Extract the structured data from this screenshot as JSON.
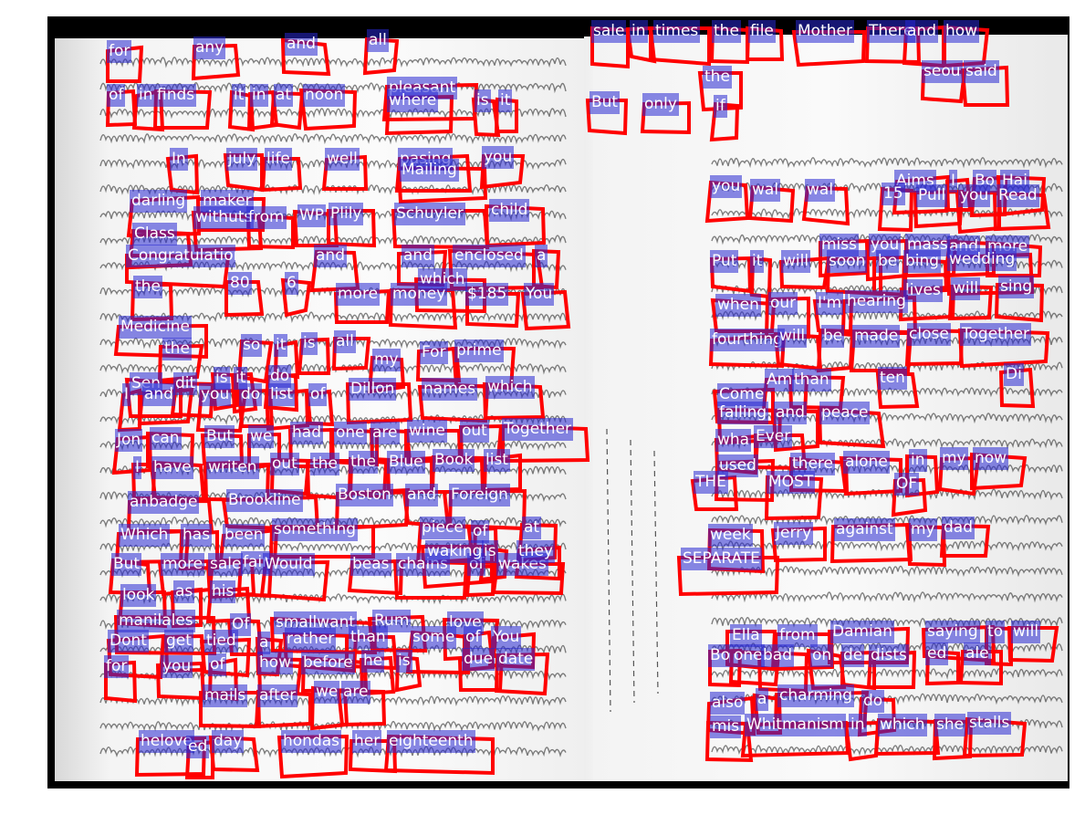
{
  "tags": [
    [
      "for",
      117,
      44,
      36
    ],
    [
      "any",
      212,
      40,
      46
    ],
    [
      "and",
      312,
      36,
      46
    ],
    [
      "all",
      402,
      32,
      30
    ],
    [
      "sale",
      648,
      22,
      42
    ],
    [
      "in",
      690,
      22,
      24
    ],
    [
      "times",
      716,
      22,
      62
    ],
    [
      "the",
      780,
      22,
      40
    ],
    [
      "file",
      820,
      22,
      38
    ],
    [
      "Mother",
      872,
      22,
      74
    ],
    [
      "There",
      950,
      22,
      58
    ],
    [
      "and",
      992,
      22,
      40
    ],
    [
      "how",
      1034,
      22,
      46
    ],
    [
      "the",
      770,
      72,
      40
    ],
    [
      "seou",
      1010,
      66,
      46
    ],
    [
      "said",
      1056,
      66,
      46
    ],
    [
      "of",
      117,
      92,
      30
    ],
    [
      "in",
      150,
      92,
      26
    ],
    [
      "finds",
      170,
      92,
      58
    ],
    [
      "it",
      254,
      92,
      22
    ],
    [
      "in",
      274,
      92,
      26
    ],
    [
      "at",
      300,
      92,
      28
    ],
    [
      "noon",
      332,
      92,
      56
    ],
    [
      "pleasant",
      424,
      84,
      98
    ],
    [
      "where",
      424,
      98,
      68
    ],
    [
      "is",
      520,
      98,
      24
    ],
    [
      "it",
      546,
      98,
      22
    ],
    [
      "But",
      646,
      100,
      40
    ],
    [
      "only",
      704,
      102,
      52
    ],
    [
      "if",
      782,
      104,
      24
    ],
    [
      "In",
      186,
      162,
      30
    ],
    [
      "july",
      248,
      162,
      42
    ],
    [
      "life",
      290,
      162,
      38
    ],
    [
      "well",
      356,
      162,
      46
    ],
    [
      "pasing",
      436,
      162,
      78
    ],
    [
      "Mailing",
      438,
      174,
      94
    ],
    [
      "you",
      528,
      160,
      42
    ],
    [
      "you",
      778,
      192,
      40
    ],
    [
      "wal",
      822,
      196,
      46
    ],
    [
      "wal",
      882,
      196,
      46
    ],
    [
      "Aims",
      980,
      186,
      60
    ],
    [
      "I",
      1040,
      186,
      22
    ],
    [
      "Bo",
      1066,
      186,
      34
    ],
    [
      "Hai",
      1096,
      186,
      46
    ],
    [
      "15",
      966,
      200,
      34
    ],
    [
      "Pull",
      1004,
      202,
      50
    ],
    [
      "you",
      1050,
      202,
      44
    ],
    [
      "Read",
      1092,
      202,
      54
    ],
    [
      "darling",
      142,
      208,
      78
    ],
    [
      "maker",
      220,
      208,
      68
    ],
    [
      "withuts",
      212,
      226,
      74
    ],
    [
      "from",
      270,
      226,
      54
    ],
    [
      "WP",
      326,
      224,
      42
    ],
    [
      "Plily",
      360,
      222,
      50
    ],
    [
      "Schuyler",
      432,
      222,
      100
    ],
    [
      "child",
      536,
      218,
      58
    ],
    [
      "Class",
      145,
      244,
      62
    ],
    [
      "Congratulations",
      138,
      268,
      110
    ],
    [
      "and",
      344,
      268,
      46
    ],
    [
      "and",
      440,
      268,
      46
    ],
    [
      "enclosed",
      496,
      268,
      96
    ],
    [
      "a",
      586,
      268,
      24
    ],
    [
      "which",
      458,
      294,
      72
    ],
    [
      "miss",
      898,
      256,
      52
    ],
    [
      "you",
      952,
      256,
      42
    ],
    [
      "mass",
      992,
      256,
      54
    ],
    [
      "and",
      1038,
      258,
      48
    ],
    [
      "more",
      1080,
      258,
      60
    ],
    [
      "Put",
      778,
      274,
      44
    ],
    [
      "it",
      822,
      274,
      24
    ],
    [
      "will",
      856,
      274,
      50
    ],
    [
      "soon",
      906,
      274,
      58
    ],
    [
      "be",
      960,
      274,
      34
    ],
    [
      "bing",
      990,
      274,
      48
    ],
    [
      "wedding",
      1038,
      272,
      92
    ],
    [
      "the",
      146,
      302,
      40
    ],
    [
      "80",
      250,
      298,
      34
    ],
    [
      "6",
      312,
      298,
      24
    ],
    [
      "more",
      368,
      310,
      58
    ],
    [
      "money",
      428,
      310,
      70
    ],
    [
      "$185",
      510,
      310,
      58
    ],
    [
      "You",
      574,
      310,
      46
    ],
    [
      "lives",
      990,
      306,
      56
    ],
    [
      "will",
      1042,
      304,
      44
    ],
    [
      "sing",
      1094,
      302,
      50
    ],
    [
      "when",
      784,
      322,
      64
    ],
    [
      "our",
      842,
      320,
      42
    ],
    [
      "I'm",
      894,
      320,
      40
    ],
    [
      "hearing",
      926,
      318,
      76
    ],
    [
      "Medicine",
      130,
      346,
      98
    ],
    [
      "the",
      178,
      370,
      40
    ],
    [
      "so",
      264,
      366,
      30
    ],
    [
      "it",
      300,
      366,
      24
    ],
    [
      "is",
      330,
      364,
      28
    ],
    [
      "all",
      366,
      362,
      36
    ],
    [
      "my",
      408,
      382,
      34
    ],
    [
      "For",
      460,
      374,
      42
    ],
    [
      "prime",
      498,
      372,
      64
    ],
    [
      "fourthing",
      778,
      360,
      82
    ],
    [
      "will",
      852,
      356,
      46
    ],
    [
      "be",
      900,
      356,
      34
    ],
    [
      "made",
      934,
      356,
      64
    ],
    [
      "close",
      994,
      354,
      60
    ],
    [
      "Together",
      1052,
      354,
      94
    ],
    [
      "Sen",
      142,
      408,
      56
    ],
    [
      "dit",
      190,
      408,
      40
    ],
    [
      "is",
      234,
      402,
      26
    ],
    [
      "it",
      256,
      402,
      22
    ],
    [
      "do",
      294,
      400,
      32
    ],
    [
      "I",
      134,
      420,
      22
    ],
    [
      "and",
      156,
      420,
      52
    ],
    [
      "you",
      218,
      420,
      48
    ],
    [
      "do",
      262,
      420,
      34
    ],
    [
      "list",
      294,
      420,
      40
    ],
    [
      "of",
      338,
      420,
      26
    ],
    [
      "Dillon",
      382,
      414,
      66
    ],
    [
      "names",
      462,
      414,
      72
    ],
    [
      "which",
      532,
      412,
      62
    ],
    [
      "Am",
      838,
      404,
      44
    ],
    [
      "than",
      868,
      404,
      54
    ],
    [
      "ten",
      962,
      402,
      40
    ],
    [
      "Di",
      1100,
      398,
      30
    ],
    [
      "Come",
      786,
      420,
      62
    ],
    [
      "falling",
      786,
      440,
      68
    ],
    [
      "and",
      848,
      440,
      48
    ],
    [
      "peace",
      898,
      440,
      68
    ],
    [
      "Jon",
      126,
      470,
      38
    ],
    [
      "can",
      164,
      468,
      48
    ],
    [
      "But",
      224,
      466,
      40
    ],
    [
      "we",
      272,
      466,
      34
    ],
    [
      "had",
      318,
      462,
      46
    ],
    [
      "one",
      366,
      462,
      46
    ],
    [
      "are",
      406,
      462,
      42
    ],
    [
      "wine",
      446,
      460,
      56
    ],
    [
      "out",
      504,
      460,
      42
    ],
    [
      "Together",
      550,
      458,
      92
    ],
    [
      "wha",
      784,
      470,
      46
    ],
    [
      "Ever",
      826,
      466,
      54
    ],
    [
      "I",
      146,
      500,
      22
    ],
    [
      "have",
      166,
      500,
      56
    ],
    [
      "writen",
      226,
      500,
      68
    ],
    [
      "out",
      296,
      496,
      40
    ],
    [
      "the",
      340,
      496,
      42
    ],
    [
      "the",
      382,
      494,
      42
    ],
    [
      "Blue",
      424,
      494,
      50
    ],
    [
      "Book",
      474,
      492,
      56
    ],
    [
      "list",
      530,
      492,
      40
    ],
    [
      "used",
      786,
      498,
      62
    ],
    [
      "there",
      866,
      496,
      60
    ],
    [
      "alone",
      924,
      494,
      62
    ],
    [
      "in",
      996,
      492,
      28
    ],
    [
      "my",
      1030,
      490,
      40
    ],
    [
      "now",
      1066,
      490,
      56
    ],
    [
      "THE",
      760,
      516,
      48
    ],
    [
      "MOST",
      840,
      516,
      60
    ],
    [
      "OF",
      980,
      518,
      34
    ],
    [
      "anbadge",
      140,
      538,
      90
    ],
    [
      "Brookline",
      248,
      536,
      100
    ],
    [
      "Boston",
      368,
      530,
      76
    ],
    [
      "and",
      444,
      530,
      46
    ],
    [
      "Foreign",
      492,
      530,
      82
    ],
    [
      "Which",
      130,
      574,
      74
    ],
    [
      "has",
      198,
      574,
      42
    ],
    [
      "been",
      244,
      574,
      58
    ],
    [
      "something",
      298,
      568,
      110
    ],
    [
      "piece",
      460,
      566,
      62
    ],
    [
      "of",
      516,
      570,
      30
    ],
    [
      "at",
      572,
      566,
      34
    ],
    [
      "week",
      776,
      574,
      60
    ],
    [
      "Jerry",
      848,
      572,
      56
    ],
    [
      "against",
      914,
      568,
      82
    ],
    [
      "my",
      996,
      568,
      36
    ],
    [
      "dad",
      1032,
      566,
      50
    ],
    [
      "But",
      122,
      606,
      42
    ],
    [
      "more",
      176,
      606,
      56
    ],
    [
      "sale",
      228,
      606,
      48
    ],
    [
      "fair",
      264,
      604,
      32
    ],
    [
      "Would",
      288,
      606,
      70
    ],
    [
      "beas",
      384,
      606,
      56
    ],
    [
      "chains",
      434,
      606,
      76
    ],
    [
      "of",
      512,
      606,
      30
    ],
    [
      "wakes",
      544,
      606,
      72
    ],
    [
      "waking",
      466,
      592,
      76
    ],
    [
      "is",
      528,
      592,
      26
    ],
    [
      "they",
      566,
      592,
      46
    ],
    [
      "SEPARATE",
      746,
      600,
      106
    ],
    [
      "look",
      132,
      640,
      50
    ],
    [
      "as",
      190,
      636,
      32
    ],
    [
      "his",
      230,
      636,
      40
    ],
    [
      "manilales",
      128,
      668,
      104
    ],
    [
      "Of",
      252,
      672,
      34
    ],
    [
      "smallwant",
      300,
      670,
      110
    ],
    [
      "Rum",
      408,
      668,
      56
    ],
    [
      "love",
      490,
      670,
      52
    ],
    [
      "Dont",
      118,
      690,
      60
    ],
    [
      "get",
      180,
      690,
      42
    ],
    [
      "tied",
      224,
      690,
      48
    ],
    [
      "a",
      282,
      692,
      24
    ],
    [
      "rather",
      312,
      688,
      76
    ],
    [
      "than",
      382,
      686,
      52
    ],
    [
      "some",
      450,
      686,
      62
    ],
    [
      "of",
      508,
      686,
      30
    ],
    [
      "You",
      538,
      686,
      46
    ],
    [
      "Ella",
      800,
      684,
      50
    ],
    [
      "from",
      852,
      684,
      60
    ],
    [
      "Damian",
      910,
      680,
      86
    ],
    [
      "saying",
      1014,
      680,
      76
    ],
    [
      "to",
      1080,
      680,
      30
    ],
    [
      "will",
      1108,
      680,
      48
    ],
    [
      "for",
      114,
      718,
      36
    ],
    [
      "you",
      176,
      718,
      46
    ],
    [
      "of",
      228,
      716,
      28
    ],
    [
      "how",
      282,
      714,
      46
    ],
    [
      "before",
      330,
      714,
      70
    ],
    [
      "he",
      396,
      712,
      34
    ],
    [
      "is",
      434,
      712,
      26
    ],
    [
      "due",
      506,
      710,
      44
    ],
    [
      "date",
      544,
      710,
      56
    ],
    [
      "Bo",
      776,
      706,
      34
    ],
    [
      "one",
      802,
      706,
      48
    ],
    [
      "bad",
      834,
      706,
      48
    ],
    [
      "on",
      888,
      706,
      34
    ],
    [
      "de",
      922,
      706,
      34
    ],
    [
      "dists",
      952,
      706,
      50
    ],
    [
      "ed",
      1014,
      704,
      34
    ],
    [
      "ale",
      1056,
      704,
      40
    ],
    [
      "mails",
      222,
      750,
      60
    ],
    [
      "after",
      282,
      750,
      56
    ],
    [
      "we",
      344,
      746,
      34
    ],
    [
      "are",
      374,
      746,
      44
    ],
    [
      "also",
      778,
      758,
      48
    ],
    [
      "a",
      828,
      754,
      24
    ],
    [
      "charming",
      852,
      750,
      96
    ],
    [
      "do",
      944,
      756,
      34
    ],
    [
      "mis",
      778,
      784,
      42
    ],
    [
      "Whitmanism",
      816,
      782,
      112
    ],
    [
      "in",
      930,
      782,
      30
    ],
    [
      "which",
      962,
      782,
      66
    ],
    [
      "she",
      1024,
      782,
      42
    ],
    [
      "stalls",
      1060,
      780,
      62
    ],
    [
      "helove",
      152,
      800,
      72
    ],
    [
      "day",
      232,
      800,
      48
    ],
    [
      "ed",
      204,
      806,
      28
    ],
    [
      "hondas",
      308,
      800,
      72
    ],
    [
      "her",
      386,
      800,
      44
    ],
    [
      "eighteenth",
      424,
      800,
      114
    ]
  ]
}
